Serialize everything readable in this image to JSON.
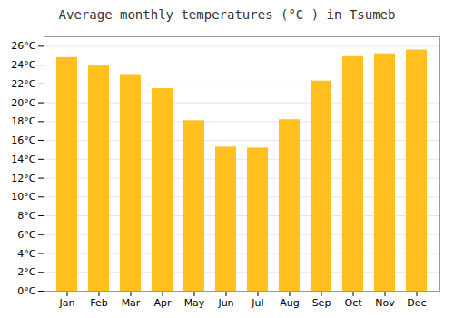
{
  "chart_data": {
    "type": "bar",
    "title": "Average monthly temperatures (°C ) in Tsumeb",
    "categories": [
      "Jan",
      "Feb",
      "Mar",
      "Apr",
      "May",
      "Jun",
      "Jul",
      "Aug",
      "Sep",
      "Oct",
      "Nov",
      "Dec"
    ],
    "values": [
      24.8,
      23.9,
      23.0,
      21.5,
      18.1,
      15.3,
      15.2,
      18.2,
      22.3,
      24.9,
      25.2,
      25.6
    ],
    "color": "#FFC020",
    "ylim": [
      0,
      27
    ],
    "yticks": [
      {
        "value": 0,
        "label": "0°C"
      },
      {
        "value": 2,
        "label": "2°C"
      },
      {
        "value": 4,
        "label": "4°C"
      },
      {
        "value": 6,
        "label": "6°C"
      },
      {
        "value": 8,
        "label": "8°C"
      },
      {
        "value": 10,
        "label": "10°C"
      },
      {
        "value": 12,
        "label": "12°C"
      },
      {
        "value": 14,
        "label": "14°C"
      },
      {
        "value": 16,
        "label": "16°C"
      },
      {
        "value": 18,
        "label": "18°C"
      },
      {
        "value": 20,
        "label": "20°C"
      },
      {
        "value": 22,
        "label": "22°C"
      },
      {
        "value": 24,
        "label": "24°C"
      },
      {
        "value": 26,
        "label": "26°C"
      }
    ],
    "grid": true
  }
}
